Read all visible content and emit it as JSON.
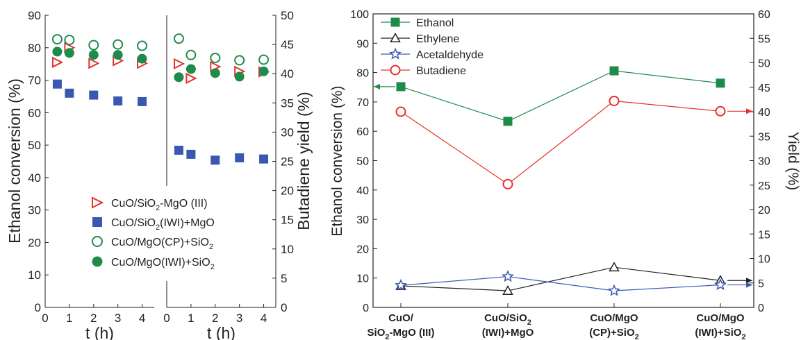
{
  "chart_data": [
    {
      "type": "scatter",
      "panel": "left",
      "xlabel": "t (h)",
      "ylabel_left": "Ethanol conversion (%)",
      "ylabel_right": "Butadiene yield (%)",
      "xlim": [
        0,
        4.5
      ],
      "ylim_left": [
        0,
        90
      ],
      "ylim_right": [
        0,
        50
      ],
      "x_ticks": [
        "0",
        "1",
        "2",
        "3",
        "4"
      ],
      "y_ticks_left": [
        "0",
        "10",
        "20",
        "30",
        "40",
        "50",
        "60",
        "70",
        "80",
        "90"
      ],
      "y_ticks_right": [
        "0",
        "5",
        "10",
        "15",
        "20",
        "25",
        "30",
        "35",
        "40",
        "45",
        "50"
      ],
      "legend_position": "center-left",
      "series": [
        {
          "name_parts": [
            "CuO/SiO",
            "2",
            "-MgO (III)"
          ],
          "marker": "triangle-right-open",
          "color": "#e8302a",
          "conversion_x": [
            0.5,
            1,
            2,
            3,
            4
          ],
          "conversion_y": [
            75.5,
            80,
            75.2,
            76,
            75.2
          ],
          "yield_x": [
            0.5,
            1,
            2,
            3,
            4
          ],
          "yield_y": [
            41.7,
            39.2,
            41.2,
            40.4,
            40.3
          ]
        },
        {
          "name_parts": [
            "CuO/SiO",
            "2",
            "(IWI)+MgO"
          ],
          "marker": "square-filled",
          "color": "#3b58b0",
          "conversion_x": [
            0.5,
            1,
            2,
            3,
            4
          ],
          "conversion_y": [
            68.8,
            66,
            65.4,
            63.6,
            63.4
          ],
          "yield_x": [
            0.5,
            1,
            2,
            3,
            4
          ],
          "yield_y": [
            26.9,
            26.2,
            25.2,
            25.6,
            25.4
          ]
        },
        {
          "name_parts": [
            "CuO/MgO(CP)+SiO",
            "2",
            ""
          ],
          "marker": "circle-open",
          "color": "#1e8b4a",
          "conversion_x": [
            0.5,
            1,
            2,
            3,
            4
          ],
          "conversion_y": [
            82.6,
            82.4,
            80.8,
            81,
            80.6
          ],
          "yield_x": [
            0.5,
            1,
            2,
            3,
            4
          ],
          "yield_y": [
            46,
            43.2,
            42.7,
            42.3,
            42.4
          ]
        },
        {
          "name_parts": [
            "CuO/MgO(IWI)+SiO",
            "2",
            ""
          ],
          "marker": "circle-filled",
          "color": "#1e8b4a",
          "conversion_x": [
            0.5,
            1,
            2,
            3,
            4
          ],
          "conversion_y": [
            78.8,
            78.4,
            77.8,
            77.8,
            76.6
          ],
          "yield_x": [
            0.5,
            1,
            2,
            3,
            4
          ],
          "yield_y": [
            39.4,
            40.8,
            40.1,
            39.5,
            40.4
          ]
        }
      ]
    },
    {
      "type": "line",
      "panel": "right",
      "ylabel_left": "Ethanol conversion (%)",
      "ylabel_right": "Yield (%)",
      "ylim_left": [
        0,
        100
      ],
      "ylim_right": [
        0,
        60
      ],
      "y_ticks_left": [
        "0",
        "10",
        "20",
        "30",
        "40",
        "50",
        "60",
        "70",
        "80",
        "90",
        "100"
      ],
      "y_ticks_right": [
        "0",
        "5",
        "10",
        "15",
        "20",
        "25",
        "30",
        "35",
        "40",
        "45",
        "50",
        "55",
        "60"
      ],
      "categories": [
        {
          "line1_parts": [
            "CuO/",
            "",
            ""
          ],
          "line2_parts": [
            "SiO",
            "2",
            "-MgO (III)"
          ]
        },
        {
          "line1_parts": [
            "CuO/SiO",
            "2",
            ""
          ],
          "line2_parts": [
            "(IWI)+MgO",
            "",
            ""
          ]
        },
        {
          "line1_parts": [
            "CuO/MgO",
            "",
            ""
          ],
          "line2_parts": [
            "(CP)+SiO",
            "2",
            ""
          ]
        },
        {
          "line1_parts": [
            "CuO/MgO",
            "",
            ""
          ],
          "line2_parts": [
            "(IWI)+SiO",
            "2",
            ""
          ]
        }
      ],
      "legend_position": "top-left",
      "series": [
        {
          "name": "Ethanol",
          "axis": "left",
          "marker": "square-filled",
          "color": "#1e8b4a",
          "values": [
            75.2,
            63.4,
            80.6,
            76.4
          ],
          "arrow": "left"
        },
        {
          "name": "Ethylene",
          "axis": "right",
          "marker": "triangle-open",
          "color": "#222222",
          "values": [
            4.4,
            3.4,
            8.2,
            5.5
          ],
          "arrow": "right"
        },
        {
          "name": "Acetaldehyde",
          "axis": "right",
          "marker": "star-open",
          "color": "#3b58b0",
          "values": [
            4.5,
            6.3,
            3.4,
            4.6
          ],
          "arrow": "right"
        },
        {
          "name": "Butadiene",
          "axis": "right",
          "marker": "circle-open",
          "color": "#e8302a",
          "values": [
            40,
            25.2,
            42.2,
            40.1
          ],
          "arrow": "right"
        }
      ]
    }
  ]
}
